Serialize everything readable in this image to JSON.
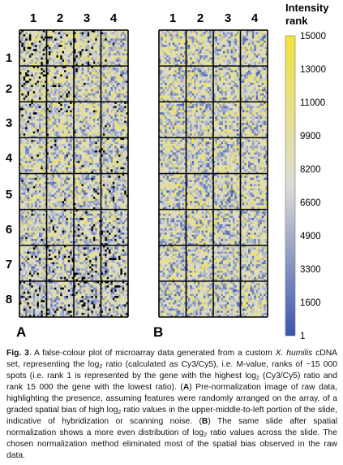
{
  "chart_data": {
    "type": "heatmap",
    "colorbar": {
      "title_line1": "Intensity",
      "title_line2": "rank",
      "ticks": [
        "15000",
        "13000",
        "11000",
        "9900",
        "8200",
        "6600",
        "4900",
        "3300",
        "1600",
        "1"
      ],
      "colors": {
        "low": "#3a55b0",
        "mid": "#dcdcd6",
        "high": "#f2e43a"
      }
    },
    "panels": [
      {
        "label": "A",
        "description": "pre-normalization, graded spatial bias upper-middle-to-left"
      },
      {
        "label": "B",
        "description": "after spatial normalization, even distribution"
      }
    ],
    "column_labels": [
      "1",
      "2",
      "3",
      "4"
    ],
    "row_labels": [
      "1",
      "2",
      "3",
      "4",
      "5",
      "6",
      "7",
      "8"
    ],
    "grid": {
      "block_columns": 4,
      "block_rows": 8,
      "cells_per_block_x": 14,
      "cells_per_block_y": 17
    }
  },
  "caption": {
    "fig_label": "Fig. 3",
    "part1": ". A false-colour plot of microarray data generated from a custom ",
    "species": "X. humilis",
    "part2": " cDNA set, representing the log",
    "sub1": "2",
    "part3": " ratio (calculated as Cy3/Cy5), i.e. M-value, ranks of ~15 000 spots (i.e. rank 1 is represented by the gene with the highest log",
    "sub2": "2",
    "part4": " (Cy3/Cy5) ratio and rank 15 000 the gene with the lowest ratio). (",
    "label_a": "A",
    "part5": ") Pre-normalization image of raw data, highlighting the presence, assuming features were randomly arranged on the array, of a graded spatial bias of high log",
    "sub3": "2",
    "part6": " ratio values in the upper-middle-to-left portion of the slide, indicative of hybridization or scanning noise. (",
    "label_b": "B",
    "part7": ") The same slide after spatial normalization shows a more even distribution of log",
    "sub4": "2",
    "part8": " ratio values across the slide. The chosen normalization method eliminated most of the spatial bias observed in the raw data."
  }
}
